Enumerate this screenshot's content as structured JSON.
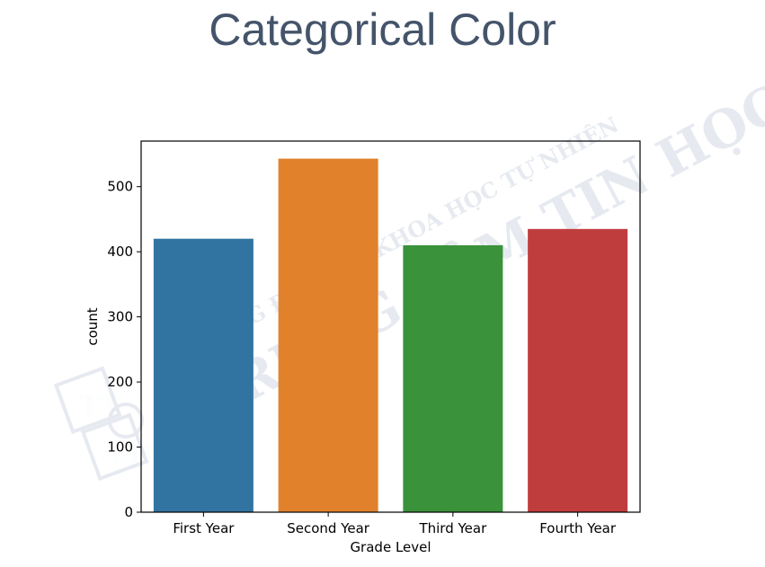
{
  "slide": {
    "title": "Categorical Color"
  },
  "watermark": {
    "line1": "TRƯỜNG ĐẠI HỌC KHOA HỌC TỰ NHIÊN",
    "line2": "TRUNG TÂM TIN HỌC",
    "logo_letters": [
      "T",
      "T",
      "T",
      "H"
    ]
  },
  "chart_data": {
    "type": "bar",
    "categories": [
      "First Year",
      "Second Year",
      "Third Year",
      "Fourth Year"
    ],
    "values": [
      420,
      543,
      410,
      435
    ],
    "colors": [
      "#3274a1",
      "#e1812c",
      "#3a923a",
      "#c03d3e"
    ],
    "xlabel": "Grade Level",
    "ylabel": "count",
    "ylim": [
      0,
      570
    ],
    "yticks": [
      0,
      100,
      200,
      300,
      400,
      500
    ],
    "grid": false,
    "legend": "none"
  }
}
